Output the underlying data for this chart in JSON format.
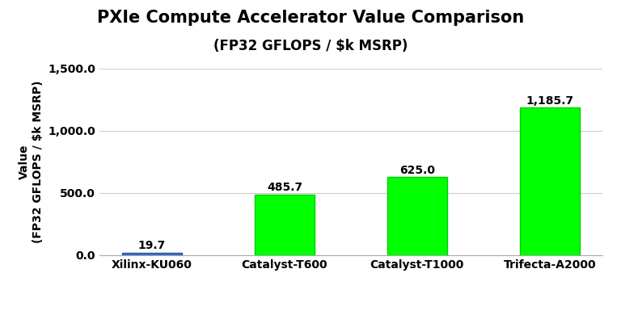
{
  "title": "PXIe Compute Accelerator Value Comparison",
  "subtitle": "(FP32 GFLOPS / $k MSRP)",
  "ylabel_top": "Value",
  "ylabel_bottom": "(FP32 GFLOPS / $k MSRP)",
  "categories": [
    "Xilinx-KU060",
    "Catalyst-T600",
    "Catalyst-T1000",
    "Trifecta-A2000"
  ],
  "values": [
    19.7,
    485.7,
    625.0,
    1185.7
  ],
  "bar_colors": [
    "#4472c4",
    "#00ff00",
    "#00ff00",
    "#00ff00"
  ],
  "bar_edge_colors": [
    "#2255aa",
    "#00cc00",
    "#00cc00",
    "#00cc00"
  ],
  "ylim": [
    0,
    1500
  ],
  "yticks": [
    0.0,
    500.0,
    1000.0,
    1500.0
  ],
  "ytick_labels": [
    "0.0",
    "500.0",
    "1,000.0",
    "1,500.0"
  ],
  "value_labels": [
    "19.7",
    "485.7",
    "625.0",
    "1,185.7"
  ],
  "background_color": "#ffffff",
  "title_fontsize": 15,
  "subtitle_fontsize": 12,
  "tick_label_fontsize": 10,
  "value_label_fontsize": 10,
  "ylabel_fontsize": 10,
  "xlabel_fontsize": 10,
  "grid_color": "#cccccc",
  "spine_color": "#aaaaaa"
}
